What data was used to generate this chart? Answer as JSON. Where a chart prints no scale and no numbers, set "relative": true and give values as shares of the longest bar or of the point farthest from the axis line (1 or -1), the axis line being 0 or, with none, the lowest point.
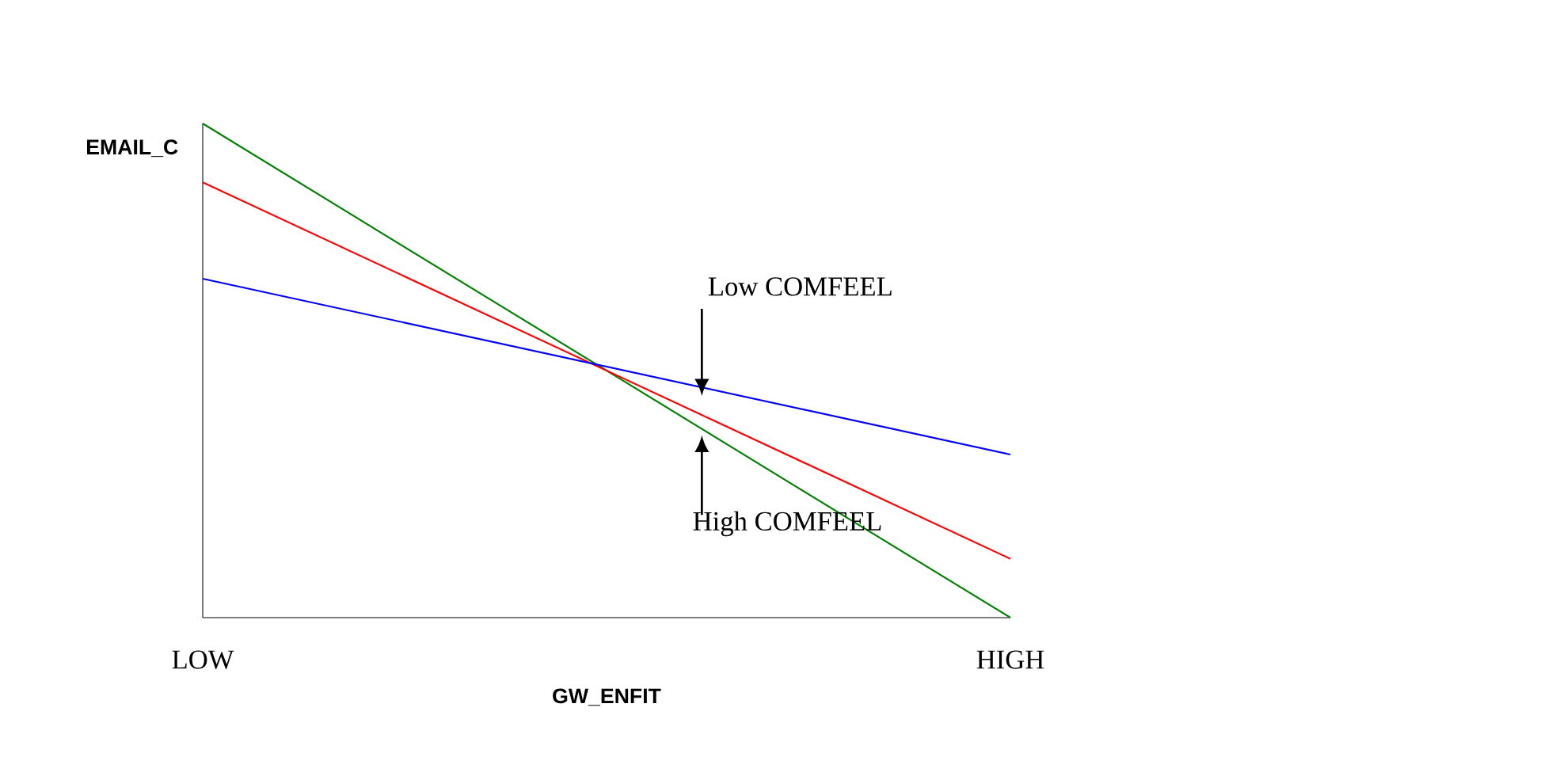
{
  "chart_data": {
    "type": "line",
    "relative": true,
    "xlabel": "GW_ENFIT",
    "ylabel": "EMAIL_C",
    "categories": [
      "LOW",
      "HIGH"
    ],
    "series": [
      {
        "color": "#008000",
        "values": [
          1,
          0
        ]
      },
      {
        "color": "#ff0000",
        "values": [
          0.881,
          0.119
        ]
      },
      {
        "color": "#0000ff",
        "values": [
          0.686,
          0.33
        ]
      }
    ],
    "annotations": [
      "Low COMFEEL",
      "High COMFEEL"
    ],
    "marker": "none",
    "line_style": "solid"
  }
}
